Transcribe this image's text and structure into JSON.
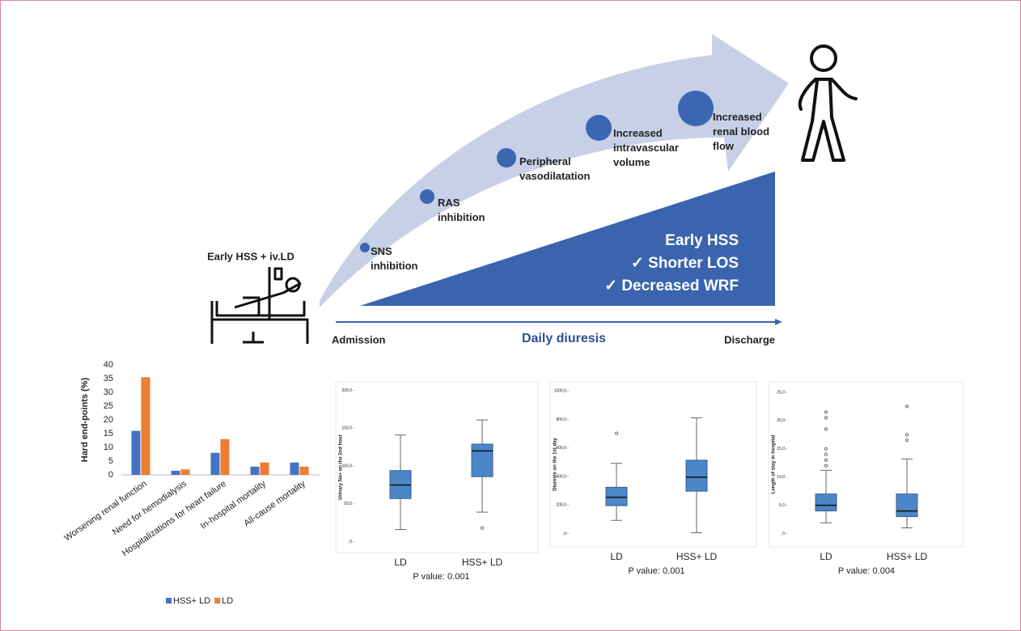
{
  "diagram": {
    "patient_label": "Early HSS + iv.LD",
    "steps": [
      [
        "SNS",
        "inhibition"
      ],
      [
        "RAS",
        "inhibition"
      ],
      [
        "Peripheral",
        "vasodilatation"
      ],
      [
        "Increased",
        "intravascular",
        "volume"
      ],
      [
        "Increased",
        "renal blood",
        "flow"
      ]
    ],
    "outcome_title": "Early HSS",
    "outcomes": [
      "✓ Shorter LOS",
      "✓ Decreased WRF"
    ],
    "axis_start": "Admission",
    "axis_title": "Daily diuresis",
    "axis_end": "Discharge"
  },
  "chart_data": [
    {
      "type": "bar",
      "y_label": "Hard end-points (%)",
      "categories": [
        "Worsening renal function",
        "Need for hemodialysis",
        "Hospitalizations for heart failure",
        "In-hospital mortality",
        "All-cause mortality"
      ],
      "series": [
        {
          "name": "HSS+ LD",
          "color": "#4472c4",
          "values": [
            16,
            1.5,
            8,
            3,
            4.5
          ]
        },
        {
          "name": "LD",
          "color": "#ed7d31",
          "values": [
            35.5,
            2,
            13,
            4.5,
            3
          ]
        }
      ],
      "ylim": [
        0,
        40
      ],
      "yticks": [
        0,
        5,
        10,
        15,
        20,
        25,
        30,
        35,
        40
      ],
      "legend": "bottom"
    },
    {
      "type": "box",
      "y_label": "Urinary Na+ on the 2nd hour",
      "caption": "P value: 0.001",
      "color": "#4a86c8",
      "categories": [
        "LD",
        "HSS+ LD"
      ],
      "boxes": [
        {
          "min": 16,
          "q1": 57,
          "median": 75,
          "q3": 94,
          "max": 141,
          "outliers": []
        },
        {
          "min": 39,
          "q1": 86,
          "median": 120,
          "q3": 129,
          "max": 161,
          "outliers": [
            18
          ]
        }
      ],
      "ylim": [
        -8,
        205
      ],
      "yticks": [
        {
          "value": 0,
          "label": ",0"
        },
        {
          "value": 50,
          "label": "50,0"
        },
        {
          "value": 100,
          "label": "100,0"
        },
        {
          "value": 150,
          "label": "150,0"
        },
        {
          "value": 200,
          "label": "200,0"
        }
      ]
    },
    {
      "type": "box",
      "y_label": "Diuresis on the 1st day",
      "caption": "P value: 0.001",
      "color": "#4a86c8",
      "categories": [
        "LD",
        "HSS+ LD"
      ],
      "boxes": [
        {
          "min": 92,
          "q1": 195,
          "median": 254,
          "q3": 324,
          "max": 492,
          "outliers": [
            703
          ]
        },
        {
          "min": 5,
          "q1": 297,
          "median": 395,
          "q3": 514,
          "max": 811,
          "outliers": []
        }
      ],
      "ylim": [
        -60,
        1030
      ],
      "yticks": [
        {
          "value": 0,
          "label": ",0"
        },
        {
          "value": 200,
          "label": "200,0"
        },
        {
          "value": 400,
          "label": "400,0"
        },
        {
          "value": 600,
          "label": "600,0"
        },
        {
          "value": 800,
          "label": "800,0"
        },
        {
          "value": 1000,
          "label": "1000,0"
        }
      ]
    },
    {
      "type": "box",
      "y_label": "Length of stay in hospital",
      "caption": "P value: 0.004",
      "color": "#4a86c8",
      "categories": [
        "LD",
        "HSS+ LD"
      ],
      "boxes": [
        {
          "min": 1.9,
          "q1": 4,
          "median": 5,
          "q3": 7,
          "max": 11.2,
          "outliers": [
            21.5,
            20.5,
            18.5,
            15,
            14,
            13,
            12
          ]
        },
        {
          "min": 1,
          "q1": 3,
          "median": 4,
          "q3": 7,
          "max": 13.2,
          "outliers": [
            22.5,
            17.5,
            16.5
          ]
        }
      ],
      "ylim": [
        -1.5,
        26
      ],
      "yticks": [
        {
          "value": 0,
          "label": ",0"
        },
        {
          "value": 5,
          "label": "5,0"
        },
        {
          "value": 10,
          "label": "10,0"
        },
        {
          "value": 15,
          "label": "15,0"
        },
        {
          "value": 20,
          "label": "20,0"
        },
        {
          "value": 25,
          "label": "25,0"
        }
      ]
    }
  ]
}
